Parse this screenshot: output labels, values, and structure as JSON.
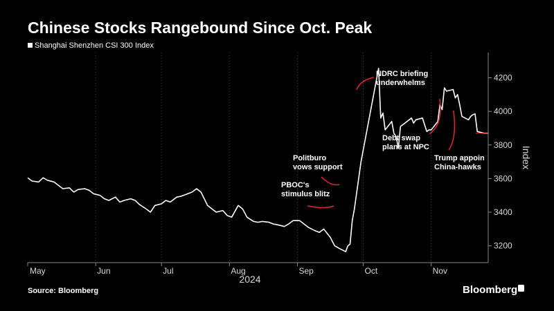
{
  "header": {
    "title": "Chinese Stocks Rangebound Since Oct. Peak",
    "legend_label": "Shanghai Shenzhen CSI 300 Index"
  },
  "footer": {
    "source": "Source: Bloomberg",
    "brand": "Bloomberg"
  },
  "colors": {
    "background": "#000000",
    "line": "#ffffff",
    "grid": "#444444",
    "annotation_leader": "#e8242c",
    "text": "#ffffff",
    "tick_text": "#d9d9d9"
  },
  "chart_data": {
    "type": "line",
    "title": "Chinese Stocks Rangebound Since Oct. Peak",
    "ylabel": "Index",
    "year_label": "2024",
    "ylim": [
      3100,
      4350
    ],
    "y_ticks": [
      3200,
      3400,
      3600,
      3800,
      4000,
      4200
    ],
    "grid": "vertical dotted lines at month starts",
    "legend_position": "top-left",
    "x_range": [
      "2024-05-01",
      "2024-11-27"
    ],
    "month_ticks": [
      {
        "label": "May",
        "date": "2024-05-01"
      },
      {
        "label": "Jun",
        "date": "2024-06-01"
      },
      {
        "label": "Jul",
        "date": "2024-07-01"
      },
      {
        "label": "Aug",
        "date": "2024-08-01"
      },
      {
        "label": "Sep",
        "date": "2024-09-01"
      },
      {
        "label": "Oct",
        "date": "2024-10-01"
      },
      {
        "label": "Nov",
        "date": "2024-11-01"
      }
    ],
    "series": [
      {
        "name": "Shanghai Shenzhen CSI 300 Index",
        "color": "#ffffff",
        "points": [
          [
            "2024-05-01",
            3605
          ],
          [
            "2024-05-03",
            3585
          ],
          [
            "2024-05-06",
            3580
          ],
          [
            "2024-05-08",
            3605
          ],
          [
            "2024-05-10",
            3590
          ],
          [
            "2024-05-13",
            3580
          ],
          [
            "2024-05-15",
            3560
          ],
          [
            "2024-05-17",
            3540
          ],
          [
            "2024-05-20",
            3545
          ],
          [
            "2024-05-22",
            3520
          ],
          [
            "2024-05-24",
            3535
          ],
          [
            "2024-05-27",
            3540
          ],
          [
            "2024-05-29",
            3530
          ],
          [
            "2024-05-31",
            3510
          ],
          [
            "2024-06-03",
            3500
          ],
          [
            "2024-06-05",
            3480
          ],
          [
            "2024-06-07",
            3470
          ],
          [
            "2024-06-10",
            3490
          ],
          [
            "2024-06-12",
            3460
          ],
          [
            "2024-06-14",
            3470
          ],
          [
            "2024-06-17",
            3480
          ],
          [
            "2024-06-19",
            3470
          ],
          [
            "2024-06-21",
            3445
          ],
          [
            "2024-06-24",
            3420
          ],
          [
            "2024-06-26",
            3400
          ],
          [
            "2024-06-28",
            3440
          ],
          [
            "2024-07-01",
            3450
          ],
          [
            "2024-07-03",
            3470
          ],
          [
            "2024-07-05",
            3460
          ],
          [
            "2024-07-08",
            3490
          ],
          [
            "2024-07-10",
            3495
          ],
          [
            "2024-07-12",
            3505
          ],
          [
            "2024-07-15",
            3520
          ],
          [
            "2024-07-17",
            3540
          ],
          [
            "2024-07-19",
            3520
          ],
          [
            "2024-07-22",
            3440
          ],
          [
            "2024-07-24",
            3420
          ],
          [
            "2024-07-26",
            3400
          ],
          [
            "2024-07-29",
            3410
          ],
          [
            "2024-07-31",
            3380
          ],
          [
            "2024-08-02",
            3370
          ],
          [
            "2024-08-05",
            3440
          ],
          [
            "2024-08-07",
            3420
          ],
          [
            "2024-08-09",
            3370
          ],
          [
            "2024-08-12",
            3345
          ],
          [
            "2024-08-14",
            3340
          ],
          [
            "2024-08-16",
            3345
          ],
          [
            "2024-08-19",
            3340
          ],
          [
            "2024-08-21",
            3330
          ],
          [
            "2024-08-23",
            3325
          ],
          [
            "2024-08-26",
            3315
          ],
          [
            "2024-08-28",
            3330
          ],
          [
            "2024-08-30",
            3350
          ],
          [
            "2024-09-02",
            3350
          ],
          [
            "2024-09-04",
            3330
          ],
          [
            "2024-09-06",
            3310
          ],
          [
            "2024-09-09",
            3290
          ],
          [
            "2024-09-11",
            3280
          ],
          [
            "2024-09-13",
            3300
          ],
          [
            "2024-09-16",
            3250
          ],
          [
            "2024-09-18",
            3200
          ],
          [
            "2024-09-20",
            3185
          ],
          [
            "2024-09-23",
            3165
          ],
          [
            "2024-09-24",
            3200
          ],
          [
            "2024-09-25",
            3210
          ],
          [
            "2024-09-26",
            3350
          ],
          [
            "2024-09-27",
            3420
          ],
          [
            "2024-09-30",
            3700
          ],
          [
            "2024-10-08",
            4256
          ],
          [
            "2024-10-09",
            3960
          ],
          [
            "2024-10-10",
            3990
          ],
          [
            "2024-10-11",
            3890
          ],
          [
            "2024-10-14",
            3940
          ],
          [
            "2024-10-15",
            3870
          ],
          [
            "2024-10-16",
            3850
          ],
          [
            "2024-10-17",
            3780
          ],
          [
            "2024-10-18",
            3910
          ],
          [
            "2024-10-21",
            3940
          ],
          [
            "2024-10-22",
            3950
          ],
          [
            "2024-10-23",
            3960
          ],
          [
            "2024-10-24",
            3930
          ],
          [
            "2024-10-25",
            3950
          ],
          [
            "2024-10-28",
            3960
          ],
          [
            "2024-10-29",
            3920
          ],
          [
            "2024-10-30",
            3880
          ],
          [
            "2024-10-31",
            3890
          ],
          [
            "2024-11-01",
            3890
          ],
          [
            "2024-11-04",
            3940
          ],
          [
            "2024-11-05",
            4040
          ],
          [
            "2024-11-06",
            4010
          ],
          [
            "2024-11-07",
            4140
          ],
          [
            "2024-11-08",
            4120
          ],
          [
            "2024-11-11",
            4130
          ],
          [
            "2024-11-12",
            4080
          ],
          [
            "2024-11-13",
            4100
          ],
          [
            "2024-11-14",
            4040
          ],
          [
            "2024-11-15",
            3970
          ],
          [
            "2024-11-18",
            3950
          ],
          [
            "2024-11-19",
            3970
          ],
          [
            "2024-11-20",
            3980
          ],
          [
            "2024-11-21",
            3985
          ],
          [
            "2024-11-22",
            3880
          ],
          [
            "2024-11-25",
            3870
          ],
          [
            "2024-11-26",
            3870
          ],
          [
            "2024-11-27",
            3870
          ]
        ]
      }
    ],
    "last_value": 3870,
    "annotations": [
      {
        "lines": [
          "PBOC's",
          "stimulus blitz"
        ],
        "date": "2024-09-24",
        "value": 3200
      },
      {
        "lines": [
          "Politburo",
          "vows support"
        ],
        "date": "2024-09-26",
        "value": 3350
      },
      {
        "lines": [
          "NDRC briefing",
          "underwhelms"
        ],
        "date": "2024-10-08",
        "value": 4256
      },
      {
        "lines": [
          "Debt swap",
          "plans at NPC"
        ],
        "date": "2024-11-08",
        "value": 4120
      },
      {
        "lines": [
          "Trump appoin",
          "China-hawks"
        ],
        "date": "2024-11-14",
        "value": 4040
      }
    ]
  }
}
